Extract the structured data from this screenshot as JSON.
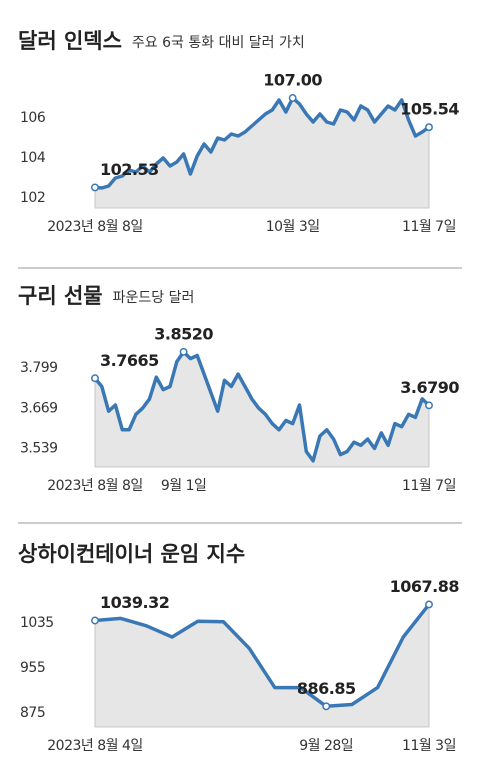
{
  "chart_data": [
    {
      "type": "line",
      "title": "달러 인덱스",
      "subtitle": "주요 6국 통화 대비 달러 가치",
      "categories": [
        "2023년 8월 8일",
        null,
        null,
        null,
        null,
        null,
        null,
        null,
        null,
        null,
        null,
        null,
        null,
        null,
        null,
        null,
        null,
        null,
        null,
        null,
        null,
        null,
        null,
        null,
        null,
        null,
        null,
        null,
        null,
        "10월 3일",
        null,
        null,
        null,
        null,
        null,
        null,
        null,
        null,
        null,
        null,
        null,
        null,
        null,
        null,
        null,
        null,
        null,
        null,
        null,
        "11월 7일"
      ],
      "series": [
        {
          "name": "달러 인덱스",
          "color": "#3a78b5",
          "values": [
            102.53,
            102.5,
            102.6,
            103.0,
            103.1,
            103.4,
            103.3,
            103.6,
            103.3,
            103.7,
            104.0,
            103.6,
            103.8,
            104.2,
            103.2,
            104.1,
            104.7,
            104.3,
            105.0,
            104.9,
            105.2,
            105.1,
            105.3,
            105.6,
            105.9,
            106.2,
            106.4,
            106.9,
            106.3,
            107.0,
            106.7,
            106.2,
            105.8,
            106.2,
            105.8,
            105.7,
            106.4,
            106.3,
            105.9,
            106.6,
            106.4,
            105.8,
            106.2,
            106.6,
            106.4,
            106.9,
            105.9,
            105.1,
            105.3,
            105.54
          ],
          "value_labels": [
            "102.53",
            null,
            null,
            null,
            null,
            null,
            null,
            null,
            null,
            null,
            null,
            null,
            null,
            null,
            null,
            null,
            null,
            null,
            null,
            null,
            null,
            null,
            null,
            null,
            null,
            null,
            null,
            null,
            null,
            "107.00",
            null,
            null,
            null,
            null,
            null,
            null,
            null,
            null,
            null,
            null,
            null,
            null,
            null,
            null,
            null,
            null,
            null,
            null,
            null,
            "105.54"
          ]
        }
      ],
      "ylim": [
        101.5,
        107.8
      ],
      "yticks": [
        102,
        104,
        106
      ]
    },
    {
      "type": "line",
      "title": "구리 선물",
      "subtitle": "파운드당 달러",
      "categories": [
        "2023년 8월 8일",
        null,
        null,
        null,
        null,
        null,
        null,
        null,
        null,
        null,
        null,
        null,
        null,
        "9월 1일",
        null,
        null,
        null,
        null,
        null,
        null,
        null,
        null,
        null,
        null,
        null,
        null,
        null,
        null,
        null,
        null,
        null,
        null,
        null,
        null,
        null,
        null,
        null,
        null,
        null,
        null,
        null,
        null,
        null,
        null,
        null,
        null,
        null,
        null,
        null,
        "11월 7일"
      ],
      "series": [
        {
          "name": "구리 선물",
          "color": "#3a78b5",
          "values": [
            3.7665,
            3.74,
            3.66,
            3.68,
            3.6,
            3.6,
            3.65,
            3.67,
            3.7,
            3.77,
            3.73,
            3.74,
            3.82,
            3.852,
            3.83,
            3.84,
            3.78,
            3.72,
            3.66,
            3.76,
            3.74,
            3.78,
            3.74,
            3.7,
            3.67,
            3.65,
            3.62,
            3.6,
            3.63,
            3.62,
            3.68,
            3.53,
            3.5,
            3.58,
            3.6,
            3.57,
            3.52,
            3.53,
            3.56,
            3.55,
            3.57,
            3.54,
            3.59,
            3.55,
            3.62,
            3.61,
            3.65,
            3.64,
            3.7,
            3.679
          ],
          "value_labels": [
            "3.7665",
            null,
            null,
            null,
            null,
            null,
            null,
            null,
            null,
            null,
            null,
            null,
            null,
            "3.8520",
            null,
            null,
            null,
            null,
            null,
            null,
            null,
            null,
            null,
            null,
            null,
            null,
            null,
            null,
            null,
            null,
            null,
            null,
            null,
            null,
            null,
            null,
            null,
            null,
            null,
            null,
            null,
            null,
            null,
            null,
            null,
            null,
            null,
            null,
            null,
            "3.6790"
          ]
        }
      ],
      "ylim": [
        3.48,
        3.89
      ],
      "yticks": [
        3.799,
        3.669,
        3.539
      ]
    },
    {
      "type": "line",
      "title": "상하이컨테이너 운임 지수",
      "categories": [
        "2023년 8월 4일",
        null,
        null,
        null,
        null,
        null,
        null,
        null,
        null,
        "9월 28일",
        null,
        null,
        null,
        "11월 3일"
      ],
      "series": [
        {
          "name": "상하이컨테이너 운임 지수",
          "color": "#3a78b5",
          "values": [
            1039.32,
            1043,
            1030,
            1010,
            1038,
            1037,
            990,
            920,
            920,
            886.85,
            890,
            920,
            1010,
            1067.88
          ],
          "value_labels": [
            "1039.32",
            null,
            null,
            null,
            null,
            null,
            null,
            null,
            null,
            "886.85",
            null,
            null,
            null,
            "1067.88"
          ]
        }
      ],
      "ylim": [
        850,
        1090
      ],
      "yticks": [
        1035,
        955,
        875
      ]
    }
  ]
}
